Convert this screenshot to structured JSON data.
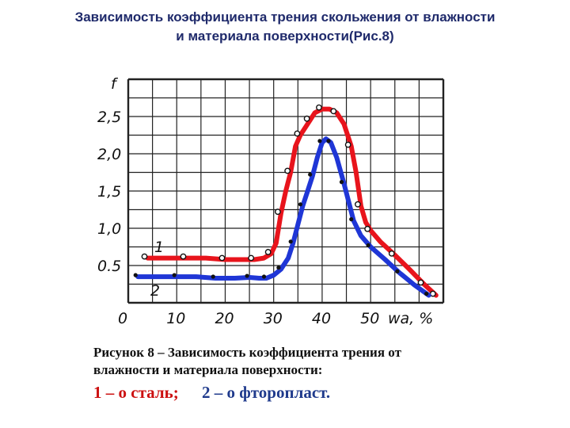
{
  "title": {
    "line1": "Зависимость коэффициента трения скольжения от влажности",
    "line2": "и материала поверхности(Рис.8)"
  },
  "chart_data": {
    "type": "line",
    "ylabel": "f",
    "xlabel": "wa, %",
    "xlim": [
      0,
      65
    ],
    "ylim": [
      0,
      3.0
    ],
    "grid": true,
    "x_ticks": [
      "0",
      "10",
      "20",
      "30",
      "40",
      "50"
    ],
    "y_ticks": [
      "0.5",
      "1,0",
      "1,5",
      "2,0",
      "2,5"
    ],
    "y_tick_values": [
      0.5,
      1.0,
      1.5,
      2.0,
      2.5
    ],
    "x_tick_values": [
      0,
      10,
      20,
      30,
      40,
      50
    ],
    "series": [
      {
        "name": "1",
        "color": "#e8141c",
        "x": [
          4,
          8,
          12,
          16,
          20,
          24,
          26,
          28,
          29.5,
          30.5,
          31.5,
          32.5,
          33.5,
          34.5,
          35.5,
          36.5,
          37.5,
          38.5,
          40,
          41.5,
          43,
          44.5,
          46,
          47,
          48,
          49,
          50,
          52,
          55,
          58,
          61,
          63.5
        ],
        "y": [
          0.6,
          0.6,
          0.6,
          0.6,
          0.58,
          0.58,
          0.58,
          0.6,
          0.66,
          0.8,
          1.2,
          1.5,
          1.75,
          2.1,
          2.25,
          2.35,
          2.45,
          2.55,
          2.6,
          2.6,
          2.55,
          2.4,
          2.1,
          1.75,
          1.3,
          1.08,
          0.97,
          0.82,
          0.64,
          0.45,
          0.25,
          0.1
        ]
      },
      {
        "name": "2",
        "color": "#1f36d6",
        "x": [
          2,
          6,
          10,
          14,
          18,
          22,
          25,
          27,
          28.5,
          30,
          31.5,
          33,
          34,
          35,
          36,
          37,
          38,
          39,
          40,
          40.8,
          41.8,
          43,
          44.5,
          45.5,
          46.5,
          48,
          50,
          53,
          56,
          59,
          62
        ],
        "y": [
          0.35,
          0.35,
          0.35,
          0.35,
          0.33,
          0.33,
          0.34,
          0.33,
          0.33,
          0.37,
          0.45,
          0.6,
          0.8,
          1.05,
          1.3,
          1.5,
          1.7,
          1.95,
          2.15,
          2.2,
          2.15,
          1.95,
          1.6,
          1.35,
          1.1,
          0.9,
          0.75,
          0.58,
          0.4,
          0.24,
          0.1
        ]
      }
    ],
    "curve_labels": [
      "1",
      "2"
    ]
  },
  "caption": {
    "line1": "Рисунок 8 – Зависимость коэффициента трения от",
    "line2": "влажности и материала поверхности:"
  },
  "legend": {
    "item1": "1 – о сталь;",
    "item2": "2 – о фторопласт."
  }
}
